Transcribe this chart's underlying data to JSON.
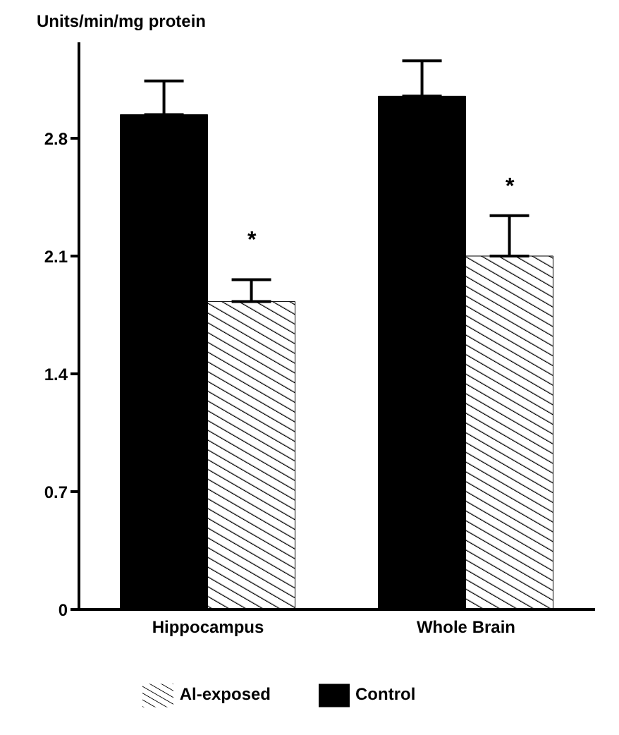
{
  "chart_data": {
    "type": "bar",
    "ylabel": "Units/min/mg protein",
    "categories": [
      "Hippocampus",
      "Whole Brain"
    ],
    "series": [
      {
        "name": "Control",
        "color": "#000000",
        "values": [
          2.94,
          3.05
        ],
        "errors": [
          0.2,
          0.21
        ]
      },
      {
        "name": "Al-exposed",
        "color": "#000000",
        "values": [
          1.83,
          2.1
        ],
        "errors": [
          0.13,
          0.24
        ]
      }
    ],
    "ylim": [
      0,
      3.37
    ],
    "yticks": [
      0,
      0.7,
      1.4,
      2.1,
      2.8
    ],
    "grid": false,
    "legend": "bottom",
    "annotations": [
      {
        "text": "*",
        "x": "Hippocampus",
        "y": 2.2
      },
      {
        "text": "*",
        "x": "Whole Brain",
        "y": 2.52
      }
    ]
  }
}
